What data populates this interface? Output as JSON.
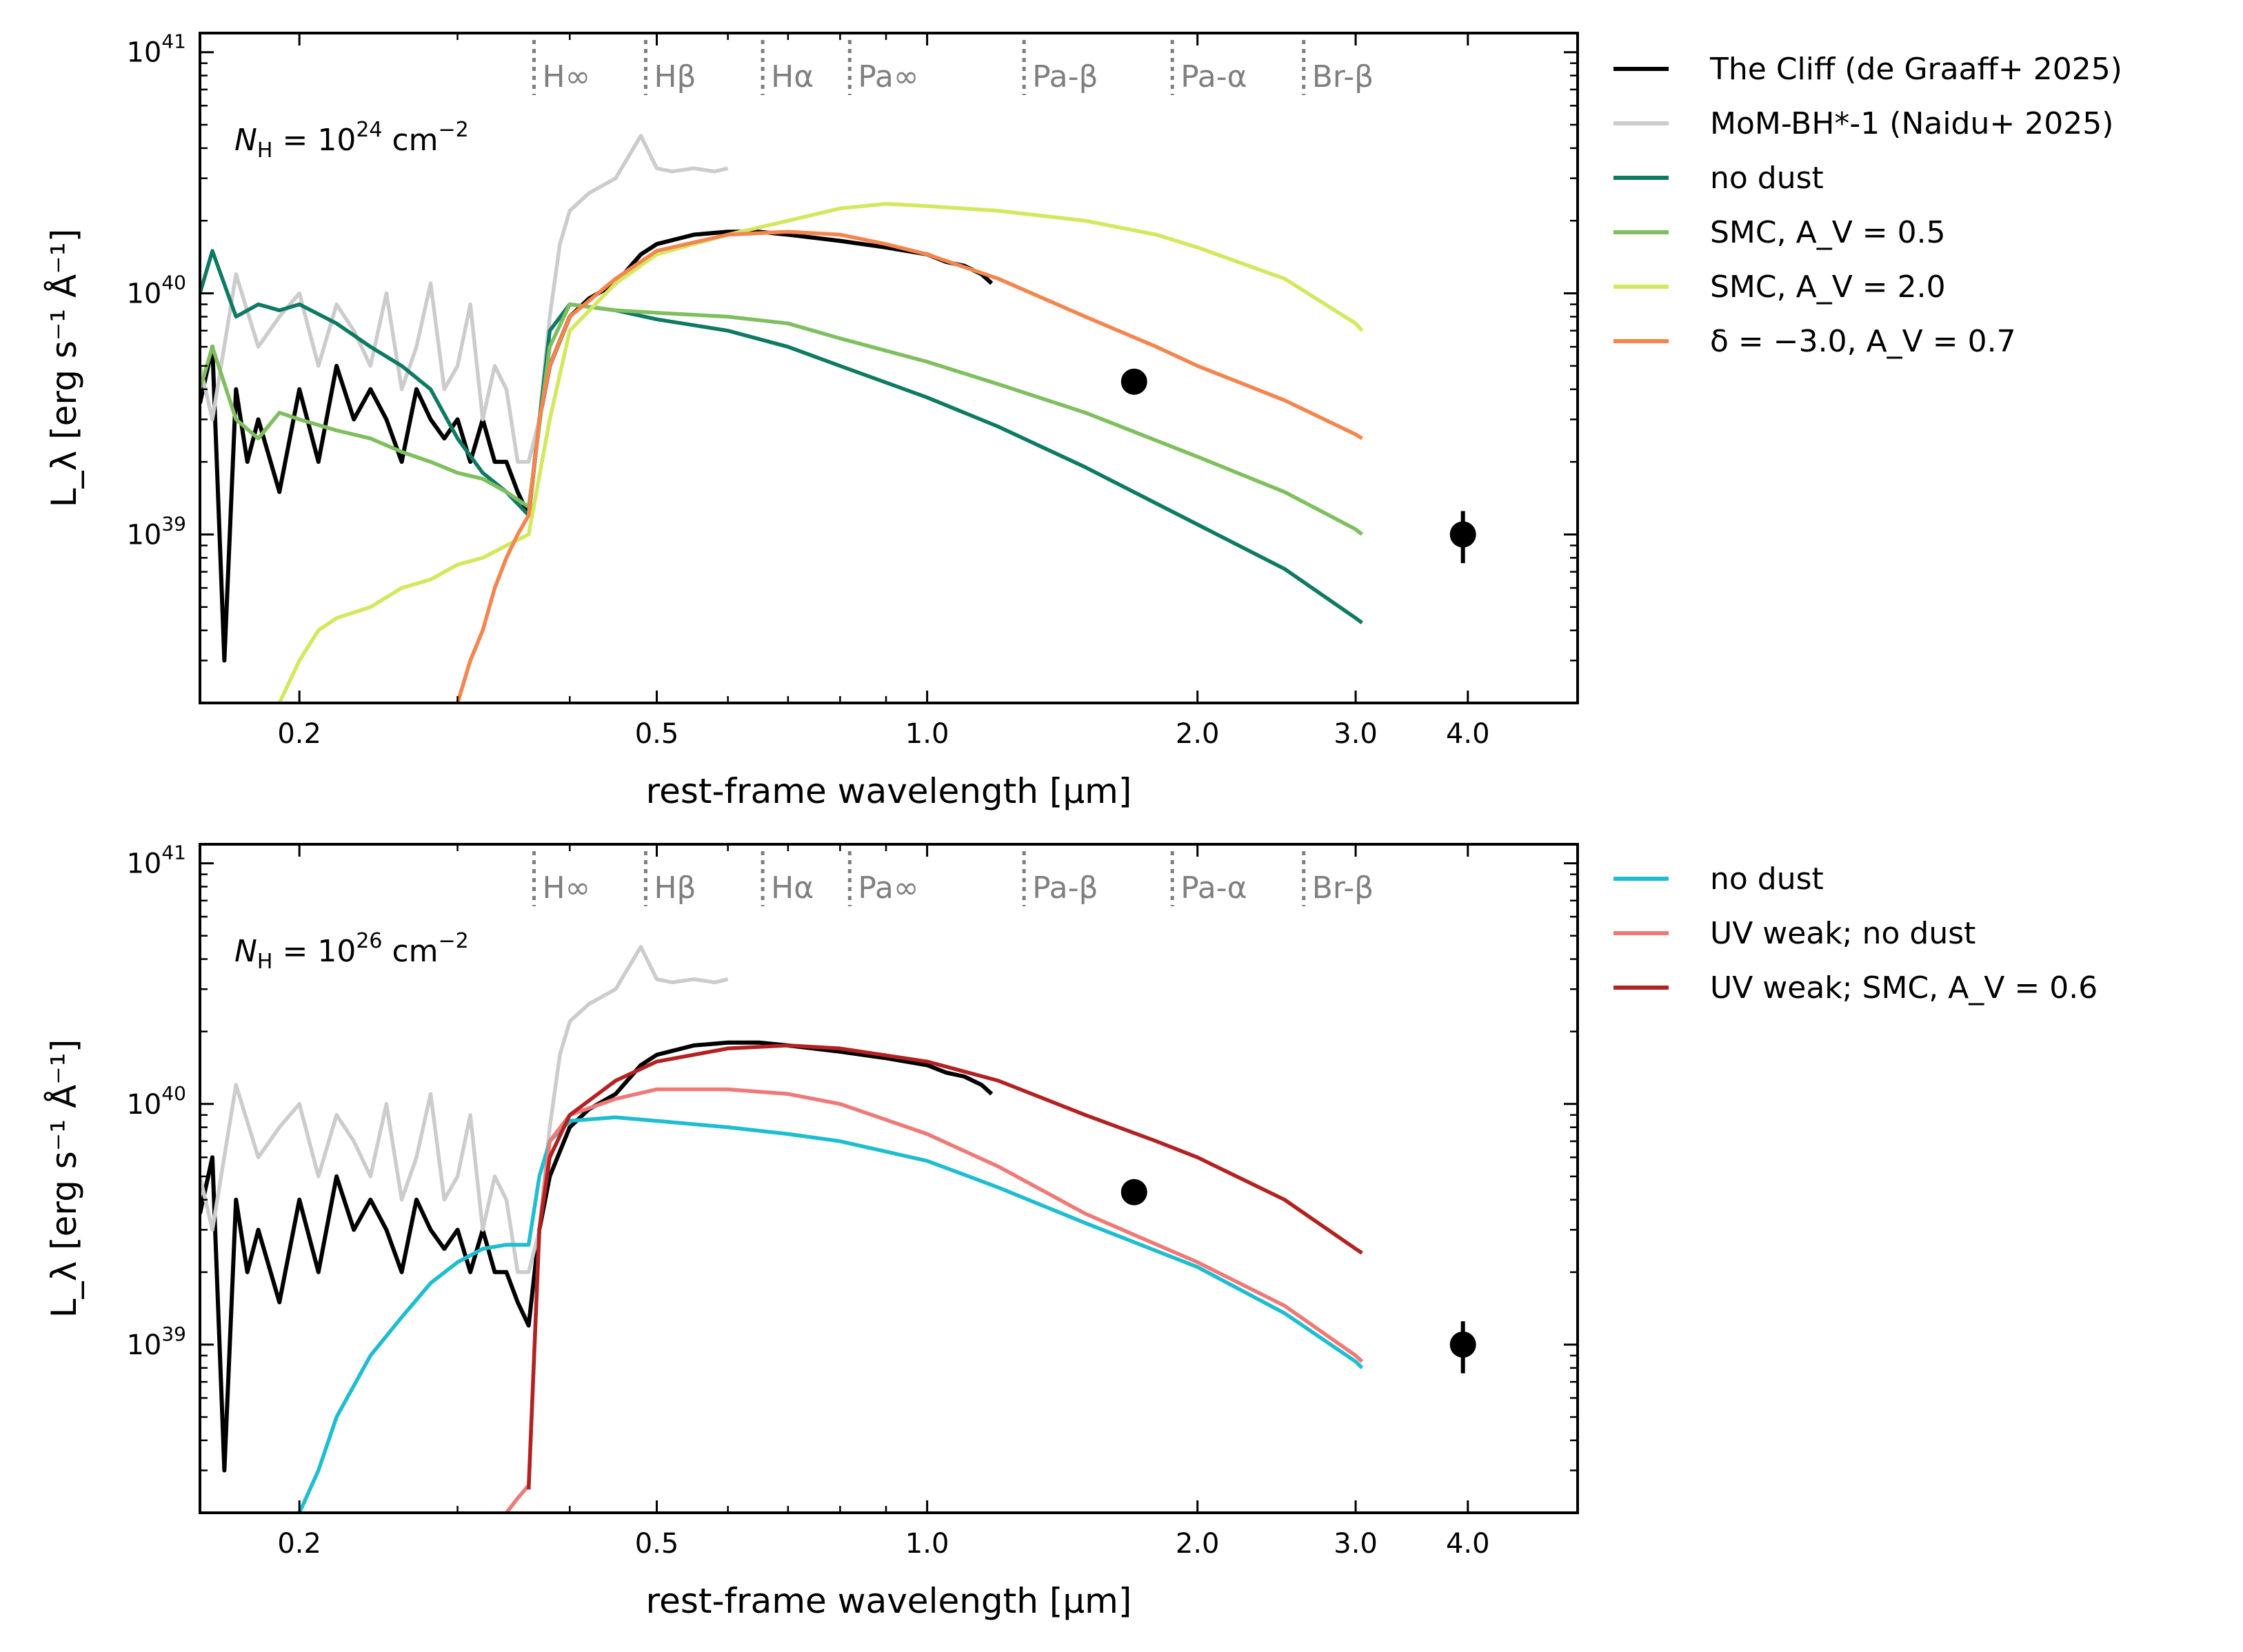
{
  "chart_data": [
    {
      "type": "line",
      "panel": "top",
      "xlabel": "rest-frame wavelength [μm]",
      "ylabel": "L_λ [erg s⁻¹ Å⁻¹]",
      "xscale": "log",
      "yscale": "log",
      "xlim": [
        0.155,
        5.3
      ],
      "ylim": [
        2e+38,
        1.2e+41
      ],
      "xticks": [
        0.2,
        0.5,
        1.0,
        2.0,
        3.0,
        4.0
      ],
      "xtick_labels": [
        "0.2",
        "0.5",
        "1.0",
        "2.0",
        "3.0",
        "4.0"
      ],
      "ytick_labels": [
        {
          "base": "10",
          "exp": "39",
          "value": 1e+39
        },
        {
          "base": "10",
          "exp": "40",
          "value": 1e+40
        },
        {
          "base": "10",
          "exp": "41",
          "value": 1e+41
        }
      ],
      "annotation": {
        "prefix": "N",
        "sub": "H",
        "mid": " = 10",
        "exp": "24",
        "unit": " cm",
        "unit_exp": "−2"
      },
      "legend_placement": "outside-right",
      "lines_markers": [
        {
          "label": "H∞",
          "x": 0.365
        },
        {
          "label": "Hβ",
          "x": 0.486
        },
        {
          "label": "Hα",
          "x": 0.656
        },
        {
          "label": "Pa∞",
          "x": 0.82
        },
        {
          "label": "Pa-β",
          "x": 1.282
        },
        {
          "label": "Pa-α",
          "x": 1.875
        },
        {
          "label": "Br-β",
          "x": 2.626
        }
      ],
      "series": [
        {
          "name": "The Cliff (de Graaff+ 2025)",
          "color": "#000000",
          "x": [
            0.155,
            0.16,
            0.165,
            0.17,
            0.175,
            0.18,
            0.19,
            0.2,
            0.21,
            0.22,
            0.23,
            0.24,
            0.25,
            0.26,
            0.27,
            0.28,
            0.29,
            0.3,
            0.31,
            0.32,
            0.33,
            0.34,
            0.35,
            0.36,
            0.37,
            0.38,
            0.4,
            0.42,
            0.45,
            0.48,
            0.5,
            0.55,
            0.6,
            0.65,
            0.7,
            0.8,
            0.9,
            1.0,
            1.05,
            1.1,
            1.15,
            1.18
          ],
          "y": [
            3.5e+39,
            6e+39,
            3e+38,
            4e+39,
            2e+39,
            3e+39,
            1.5e+39,
            4e+39,
            2e+39,
            5e+39,
            3e+39,
            4e+39,
            3e+39,
            2e+39,
            4e+39,
            3e+39,
            2.5e+39,
            3e+39,
            2e+39,
            3e+39,
            2e+39,
            2e+39,
            1.5e+39,
            1.2e+39,
            3e+39,
            5e+39,
            8e+39,
            9.5e+39,
            1.1e+40,
            1.45e+40,
            1.6e+40,
            1.75e+40,
            1.8e+40,
            1.8e+40,
            1.75e+40,
            1.65e+40,
            1.55e+40,
            1.45e+40,
            1.35e+40,
            1.3e+40,
            1.2e+40,
            1.1e+40
          ]
        },
        {
          "name": "MoM-BH*-1 (Naidu+ 2025)",
          "color": "#cccccc",
          "x": [
            0.155,
            0.16,
            0.17,
            0.18,
            0.19,
            0.2,
            0.21,
            0.22,
            0.23,
            0.24,
            0.25,
            0.26,
            0.27,
            0.28,
            0.29,
            0.3,
            0.31,
            0.32,
            0.33,
            0.34,
            0.35,
            0.36,
            0.37,
            0.38,
            0.39,
            0.4,
            0.42,
            0.45,
            0.48,
            0.5,
            0.52,
            0.55,
            0.58,
            0.6
          ],
          "y": [
            5e+39,
            3e+39,
            1.2e+40,
            6e+39,
            8e+39,
            1e+40,
            5e+39,
            9e+39,
            7e+39,
            5e+39,
            1e+40,
            4e+39,
            6e+39,
            1.1e+40,
            4e+39,
            5e+39,
            9e+39,
            3e+39,
            5e+39,
            4e+39,
            2e+39,
            2e+39,
            3e+39,
            8e+39,
            1.6e+40,
            2.2e+40,
            2.6e+40,
            3e+40,
            4.5e+40,
            3.3e+40,
            3.2e+40,
            3.3e+40,
            3.2e+40,
            3.3e+40
          ]
        },
        {
          "name": "no dust",
          "color": "#0e7a63",
          "x": [
            0.155,
            0.16,
            0.17,
            0.18,
            0.19,
            0.2,
            0.22,
            0.24,
            0.26,
            0.28,
            0.3,
            0.32,
            0.34,
            0.36,
            0.38,
            0.4,
            0.45,
            0.5,
            0.6,
            0.7,
            0.8,
            1.0,
            1.2,
            1.5,
            2.0,
            2.5,
            3.0,
            3.05
          ],
          "y": [
            1e+40,
            1.5e+40,
            8e+39,
            9e+39,
            8.5e+39,
            9e+39,
            7.5e+39,
            6e+39,
            5e+39,
            4e+39,
            2.5e+39,
            1.8e+39,
            1.5e+39,
            1.2e+39,
            7e+39,
            9e+39,
            8.5e+39,
            7.8e+39,
            7e+39,
            6e+39,
            5e+39,
            3.7e+39,
            2.8e+39,
            1.9e+39,
            1.1e+39,
            7.2e+38,
            4.5e+38,
            4.3e+38
          ]
        },
        {
          "name": "SMC, A_V = 0.5",
          "color": "#7fbf5f",
          "x": [
            0.155,
            0.16,
            0.17,
            0.18,
            0.19,
            0.2,
            0.22,
            0.24,
            0.26,
            0.28,
            0.3,
            0.32,
            0.34,
            0.36,
            0.38,
            0.4,
            0.45,
            0.5,
            0.6,
            0.7,
            0.8,
            1.0,
            1.2,
            1.5,
            2.0,
            2.5,
            3.0,
            3.05
          ],
          "y": [
            4e+39,
            6e+39,
            3e+39,
            2.5e+39,
            3.2e+39,
            3e+39,
            2.7e+39,
            2.5e+39,
            2.2e+39,
            2e+39,
            1.8e+39,
            1.7e+39,
            1.5e+39,
            1.3e+39,
            6e+39,
            9e+39,
            8.5e+39,
            8.3e+39,
            8e+39,
            7.5e+39,
            6.5e+39,
            5.2e+39,
            4.2e+39,
            3.2e+39,
            2.1e+39,
            1.5e+39,
            1.05e+39,
            1e+39
          ]
        },
        {
          "name": "SMC, A_V = 2.0",
          "color": "#d4e85f",
          "x": [
            0.19,
            0.2,
            0.21,
            0.22,
            0.24,
            0.26,
            0.28,
            0.3,
            0.32,
            0.34,
            0.36,
            0.38,
            0.4,
            0.45,
            0.5,
            0.6,
            0.7,
            0.8,
            0.9,
            1.0,
            1.2,
            1.5,
            1.8,
            2.0,
            2.5,
            3.0,
            3.05
          ],
          "y": [
            2e+38,
            3e+38,
            4e+38,
            4.5e+38,
            5e+38,
            6e+38,
            6.5e+38,
            7.5e+38,
            8e+38,
            9e+38,
            1e+39,
            3e+39,
            7e+39,
            1.1e+40,
            1.45e+40,
            1.75e+40,
            2e+40,
            2.25e+40,
            2.35e+40,
            2.3e+40,
            2.2e+40,
            2e+40,
            1.75e+40,
            1.55e+40,
            1.15e+40,
            7.5e+39,
            7e+39
          ]
        },
        {
          "name": "δ = −3.0, A_V = 0.7",
          "color": "#f4854f",
          "x": [
            0.3,
            0.31,
            0.32,
            0.33,
            0.34,
            0.35,
            0.36,
            0.37,
            0.38,
            0.4,
            0.45,
            0.5,
            0.6,
            0.7,
            0.8,
            0.9,
            1.0,
            1.2,
            1.5,
            1.8,
            2.0,
            2.5,
            3.0,
            3.05
          ],
          "y": [
            2e+38,
            3e+38,
            4e+38,
            6e+38,
            8e+38,
            1e+39,
            1.2e+39,
            3e+39,
            5e+39,
            8e+39,
            1.15e+40,
            1.5e+40,
            1.75e+40,
            1.8e+40,
            1.75e+40,
            1.6e+40,
            1.45e+40,
            1.15e+40,
            8e+39,
            6e+39,
            5e+39,
            3.6e+39,
            2.6e+39,
            2.5e+39
          ]
        }
      ],
      "points": [
        {
          "x": 1.7,
          "y": 4.3e+39,
          "yerr": null
        },
        {
          "x": 3.95,
          "y": 1e+39,
          "yerr": [
            7.6e+38,
            1.25e+39
          ]
        }
      ]
    },
    {
      "type": "line",
      "panel": "bottom",
      "xlabel": "rest-frame wavelength [μm]",
      "ylabel": "L_λ [erg s⁻¹ Å⁻¹]",
      "xscale": "log",
      "yscale": "log",
      "xlim": [
        0.155,
        5.3
      ],
      "ylim": [
        2e+38,
        1.2e+41
      ],
      "xticks": [
        0.2,
        0.5,
        1.0,
        2.0,
        3.0,
        4.0
      ],
      "xtick_labels": [
        "0.2",
        "0.5",
        "1.0",
        "2.0",
        "3.0",
        "4.0"
      ],
      "ytick_labels": [
        {
          "base": "10",
          "exp": "39",
          "value": 1e+39
        },
        {
          "base": "10",
          "exp": "40",
          "value": 1e+40
        },
        {
          "base": "10",
          "exp": "41",
          "value": 1e+41
        }
      ],
      "annotation": {
        "prefix": "N",
        "sub": "H",
        "mid": " = 10",
        "exp": "26",
        "unit": " cm",
        "unit_exp": "−2"
      },
      "legend_placement": "outside-right",
      "lines_markers": [
        {
          "label": "H∞",
          "x": 0.365
        },
        {
          "label": "Hβ",
          "x": 0.486
        },
        {
          "label": "Hα",
          "x": 0.656
        },
        {
          "label": "Pa∞",
          "x": 0.82
        },
        {
          "label": "Pa-β",
          "x": 1.282
        },
        {
          "label": "Pa-α",
          "x": 1.875
        },
        {
          "label": "Br-β",
          "x": 2.626
        }
      ],
      "series": [
        {
          "name": "The Cliff (de Graaff+ 2025)",
          "legend": false,
          "color": "#000000",
          "x": [
            0.155,
            0.16,
            0.165,
            0.17,
            0.175,
            0.18,
            0.19,
            0.2,
            0.21,
            0.22,
            0.23,
            0.24,
            0.25,
            0.26,
            0.27,
            0.28,
            0.29,
            0.3,
            0.31,
            0.32,
            0.33,
            0.34,
            0.35,
            0.36,
            0.37,
            0.38,
            0.4,
            0.42,
            0.45,
            0.48,
            0.5,
            0.55,
            0.6,
            0.65,
            0.7,
            0.8,
            0.9,
            1.0,
            1.05,
            1.1,
            1.15,
            1.18
          ],
          "y": [
            3.5e+39,
            6e+39,
            3e+38,
            4e+39,
            2e+39,
            3e+39,
            1.5e+39,
            4e+39,
            2e+39,
            5e+39,
            3e+39,
            4e+39,
            3e+39,
            2e+39,
            4e+39,
            3e+39,
            2.5e+39,
            3e+39,
            2e+39,
            3e+39,
            2e+39,
            2e+39,
            1.5e+39,
            1.2e+39,
            3e+39,
            5e+39,
            8e+39,
            9.5e+39,
            1.1e+40,
            1.45e+40,
            1.6e+40,
            1.75e+40,
            1.8e+40,
            1.8e+40,
            1.75e+40,
            1.65e+40,
            1.55e+40,
            1.45e+40,
            1.35e+40,
            1.3e+40,
            1.2e+40,
            1.1e+40
          ]
        },
        {
          "name": "MoM-BH*-1 (Naidu+ 2025)",
          "legend": false,
          "color": "#cccccc",
          "x": [
            0.155,
            0.16,
            0.17,
            0.18,
            0.19,
            0.2,
            0.21,
            0.22,
            0.23,
            0.24,
            0.25,
            0.26,
            0.27,
            0.28,
            0.29,
            0.3,
            0.31,
            0.32,
            0.33,
            0.34,
            0.35,
            0.36,
            0.37,
            0.38,
            0.39,
            0.4,
            0.42,
            0.45,
            0.48,
            0.5,
            0.52,
            0.55,
            0.58,
            0.6
          ],
          "y": [
            5e+39,
            3e+39,
            1.2e+40,
            6e+39,
            8e+39,
            1e+40,
            5e+39,
            9e+39,
            7e+39,
            5e+39,
            1e+40,
            4e+39,
            6e+39,
            1.1e+40,
            4e+39,
            5e+39,
            9e+39,
            3e+39,
            5e+39,
            4e+39,
            2e+39,
            2e+39,
            3e+39,
            8e+39,
            1.6e+40,
            2.2e+40,
            2.6e+40,
            3e+40,
            4.5e+40,
            3.3e+40,
            3.2e+40,
            3.3e+40,
            3.2e+40,
            3.3e+40
          ]
        },
        {
          "name": "no dust",
          "color": "#1fbdd0",
          "x": [
            0.2,
            0.21,
            0.22,
            0.24,
            0.26,
            0.28,
            0.3,
            0.32,
            0.34,
            0.36,
            0.37,
            0.38,
            0.4,
            0.45,
            0.5,
            0.6,
            0.7,
            0.8,
            1.0,
            1.2,
            1.5,
            2.0,
            2.5,
            3.0,
            3.05
          ],
          "y": [
            2e+38,
            3e+38,
            5e+38,
            9e+38,
            1.3e+39,
            1.8e+39,
            2.2e+39,
            2.5e+39,
            2.6e+39,
            2.6e+39,
            5e+39,
            7e+39,
            8.5e+39,
            8.8e+39,
            8.5e+39,
            8e+39,
            7.5e+39,
            7e+39,
            5.8e+39,
            4.5e+39,
            3.2e+39,
            2.1e+39,
            1.35e+39,
            8.5e+38,
            8e+38
          ]
        },
        {
          "name": "UV weak; no dust",
          "color": "#ee7a78",
          "x": [
            0.34,
            0.35,
            0.36,
            0.37,
            0.38,
            0.4,
            0.45,
            0.5,
            0.6,
            0.7,
            0.8,
            1.0,
            1.2,
            1.5,
            2.0,
            2.5,
            3.0,
            3.05
          ],
          "y": [
            2e+38,
            2.3e+38,
            2.6e+38,
            3e+39,
            7e+39,
            9e+39,
            1.05e+40,
            1.15e+40,
            1.15e+40,
            1.1e+40,
            1e+40,
            7.5e+39,
            5.5e+39,
            3.5e+39,
            2.2e+39,
            1.45e+39,
            9e+38,
            8.5e+38
          ]
        },
        {
          "name": "UV weak; SMC, A_V = 0.6",
          "color": "#b22222",
          "x": [
            0.36,
            0.37,
            0.38,
            0.4,
            0.45,
            0.5,
            0.6,
            0.7,
            0.8,
            1.0,
            1.2,
            1.5,
            1.8,
            2.0,
            2.5,
            3.0,
            3.05
          ],
          "y": [
            2.5e+38,
            3e+39,
            6e+39,
            9e+39,
            1.25e+40,
            1.5e+40,
            1.7e+40,
            1.75e+40,
            1.7e+40,
            1.5e+40,
            1.25e+40,
            9e+39,
            7e+39,
            6e+39,
            4e+39,
            2.5e+39,
            2.4e+39
          ]
        }
      ],
      "points": [
        {
          "x": 1.7,
          "y": 4.3e+39,
          "yerr": null
        },
        {
          "x": 3.95,
          "y": 1e+39,
          "yerr": [
            7.6e+38,
            1.25e+39
          ]
        }
      ]
    }
  ]
}
